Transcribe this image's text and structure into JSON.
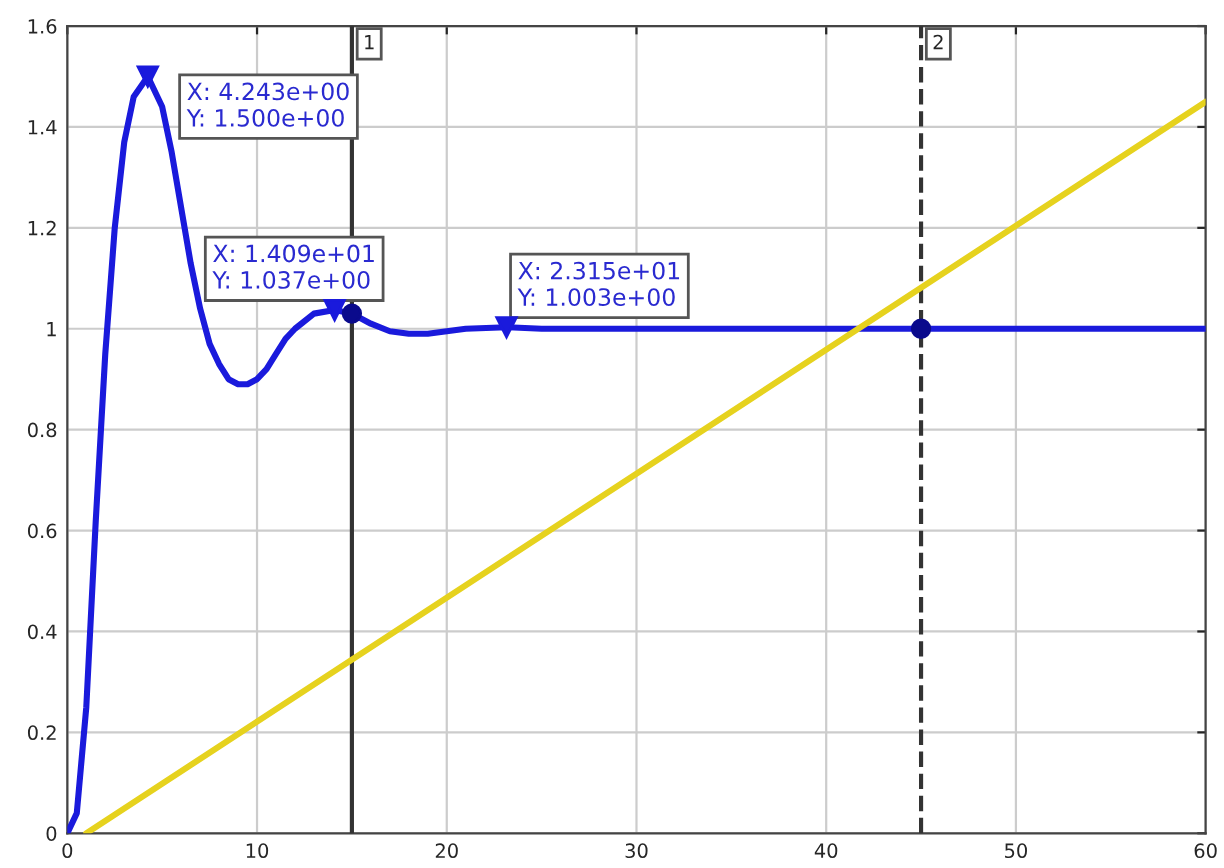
{
  "chart_data": {
    "type": "line",
    "xlim": [
      0,
      60
    ],
    "ylim": [
      0,
      1.6
    ],
    "xticks": [
      0,
      10,
      20,
      30,
      40,
      50,
      60
    ],
    "yticks": [
      0,
      0.2,
      0.4,
      0.6,
      0.8,
      1,
      1.2,
      1.4,
      1.6
    ],
    "grid": true,
    "series": [
      {
        "color": "#1a1adc",
        "x": [
          0,
          0.5,
          1,
          1.5,
          2,
          2.5,
          3,
          3.5,
          4.243,
          5,
          5.5,
          6,
          6.5,
          7,
          7.5,
          8,
          8.5,
          9,
          9.5,
          10,
          10.5,
          11,
          11.5,
          12,
          13,
          14.09,
          15,
          16,
          17,
          18,
          19,
          20,
          21,
          23.15,
          25,
          30,
          40,
          50,
          60
        ],
        "values": [
          0,
          0.04,
          0.25,
          0.62,
          0.95,
          1.2,
          1.37,
          1.46,
          1.5,
          1.44,
          1.35,
          1.24,
          1.13,
          1.04,
          0.97,
          0.93,
          0.9,
          0.89,
          0.89,
          0.9,
          0.92,
          0.95,
          0.98,
          1.0,
          1.03,
          1.037,
          1.03,
          1.01,
          0.995,
          0.99,
          0.99,
          0.995,
          1.0,
          1.003,
          1.0,
          1.0,
          1.0,
          1.0,
          1.0
        ]
      },
      {
        "color": "#e6d21e",
        "x": [
          1,
          60
        ],
        "values": [
          0,
          1.45
        ]
      },
      {
        "type": "scatter",
        "color": "#0a0a8c",
        "marker": "circle",
        "x": [
          15,
          45
        ],
        "values": [
          1.03,
          1.0
        ]
      }
    ],
    "ref_lines": [
      {
        "axis": "x",
        "value": 15,
        "color": "#333333",
        "line_style": "solid"
      },
      {
        "axis": "x",
        "value": 45,
        "color": "#333333",
        "line_style": "dashed"
      }
    ],
    "annotations": [
      {
        "text": "1",
        "x": 15,
        "y": 1.6
      },
      {
        "text": "2",
        "x": 45,
        "y": 1.6
      },
      {
        "text": "X: 4.243e+00\nY: 1.500e+00",
        "x": 4.243,
        "y": 1.5
      },
      {
        "text": "X: 1.409e+01\nY: 1.037e+00",
        "x": 14.09,
        "y": 1.037
      },
      {
        "text": "X: 2.315e+01\nY: 1.003e+00",
        "x": 23.15,
        "y": 1.003
      }
    ]
  }
}
